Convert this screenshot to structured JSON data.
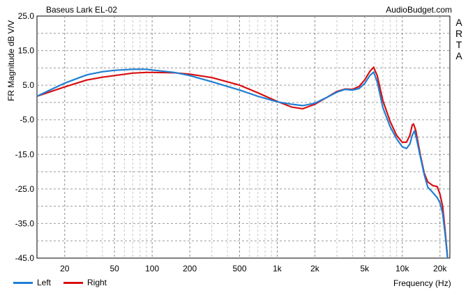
{
  "header": {
    "title": "Baseus Lark EL-02",
    "source": "AudioBudget.com"
  },
  "watermark_letters": [
    "A",
    "R",
    "T",
    "A"
  ],
  "legend": [
    {
      "label": "Left",
      "color": "#1f7fd4"
    },
    {
      "label": "Right",
      "color": "#d80f10"
    }
  ],
  "chart_data": {
    "type": "line",
    "title": "Baseus Lark EL-02",
    "xlabel": "Frequency (Hz)",
    "ylabel": "FR Magnitude dB V/V",
    "x_scale": "log",
    "xlim": [
      12,
      24000
    ],
    "ylim": [
      -45,
      25
    ],
    "y_ticks": [
      "25.0",
      "15.0",
      "5.0",
      "-5.0",
      "-15.0",
      "-25.0",
      "-35.0",
      "-45.0"
    ],
    "y_tick_values": [
      25,
      15,
      5,
      -5,
      -15,
      -25,
      -35,
      -45
    ],
    "x_ticks": [
      "20",
      "50",
      "100",
      "200",
      "500",
      "1k",
      "2k",
      "5k",
      "10k",
      "20k"
    ],
    "x_tick_values": [
      20,
      50,
      100,
      200,
      500,
      1000,
      2000,
      5000,
      10000,
      20000
    ],
    "grid": true,
    "legend_position": "bottom-left",
    "series": [
      {
        "name": "Left",
        "color": "#1f7fd4",
        "points": [
          [
            12,
            1.8
          ],
          [
            15,
            3.5
          ],
          [
            20,
            5.6
          ],
          [
            30,
            8.0
          ],
          [
            40,
            8.9
          ],
          [
            50,
            9.3
          ],
          [
            70,
            9.6
          ],
          [
            90,
            9.6
          ],
          [
            100,
            9.4
          ],
          [
            150,
            8.7
          ],
          [
            200,
            7.8
          ],
          [
            300,
            6.0
          ],
          [
            500,
            3.6
          ],
          [
            700,
            1.8
          ],
          [
            1000,
            0.2
          ],
          [
            1300,
            -0.5
          ],
          [
            1600,
            -0.9
          ],
          [
            2000,
            -0.2
          ],
          [
            2500,
            1.5
          ],
          [
            3000,
            3.0
          ],
          [
            3500,
            3.8
          ],
          [
            4000,
            3.6
          ],
          [
            4500,
            4.0
          ],
          [
            5000,
            5.5
          ],
          [
            5500,
            7.8
          ],
          [
            5900,
            8.8
          ],
          [
            6300,
            6.0
          ],
          [
            7000,
            -1.5
          ],
          [
            8000,
            -7.0
          ],
          [
            9000,
            -10.5
          ],
          [
            10000,
            -12.8
          ],
          [
            10800,
            -13.3
          ],
          [
            11500,
            -12.0
          ],
          [
            12000,
            -9.5
          ],
          [
            12500,
            -8.2
          ],
          [
            13000,
            -10.5
          ],
          [
            14000,
            -16.0
          ],
          [
            15000,
            -21.0
          ],
          [
            16000,
            -24.5
          ],
          [
            17500,
            -26.0
          ],
          [
            19000,
            -27.5
          ],
          [
            20000,
            -29.0
          ],
          [
            21000,
            -32.0
          ],
          [
            22000,
            -38.0
          ],
          [
            23000,
            -45.0
          ]
        ]
      },
      {
        "name": "Right",
        "color": "#d80f10",
        "points": [
          [
            12,
            1.8
          ],
          [
            15,
            3.0
          ],
          [
            20,
            4.5
          ],
          [
            30,
            6.5
          ],
          [
            40,
            7.3
          ],
          [
            50,
            7.8
          ],
          [
            70,
            8.5
          ],
          [
            90,
            8.7
          ],
          [
            100,
            8.7
          ],
          [
            150,
            8.6
          ],
          [
            200,
            8.2
          ],
          [
            300,
            7.2
          ],
          [
            500,
            5.0
          ],
          [
            700,
            2.8
          ],
          [
            1000,
            0.3
          ],
          [
            1300,
            -1.3
          ],
          [
            1600,
            -1.8
          ],
          [
            2000,
            -0.5
          ],
          [
            2500,
            1.5
          ],
          [
            3000,
            3.2
          ],
          [
            3500,
            3.9
          ],
          [
            4000,
            3.8
          ],
          [
            4500,
            4.6
          ],
          [
            5000,
            6.5
          ],
          [
            5500,
            9.0
          ],
          [
            5900,
            10.2
          ],
          [
            6300,
            7.8
          ],
          [
            7000,
            0.5
          ],
          [
            8000,
            -5.5
          ],
          [
            9000,
            -9.5
          ],
          [
            10000,
            -11.5
          ],
          [
            10800,
            -11.5
          ],
          [
            11500,
            -9.5
          ],
          [
            12000,
            -6.5
          ],
          [
            12300,
            -6.2
          ],
          [
            12800,
            -8.0
          ],
          [
            14000,
            -15.5
          ],
          [
            15000,
            -20.5
          ],
          [
            16000,
            -23.0
          ],
          [
            17500,
            -24.0
          ],
          [
            19000,
            -24.3
          ],
          [
            20000,
            -26.5
          ],
          [
            21000,
            -30.0
          ],
          [
            22000,
            -37.0
          ],
          [
            23000,
            -45.0
          ]
        ]
      }
    ]
  }
}
